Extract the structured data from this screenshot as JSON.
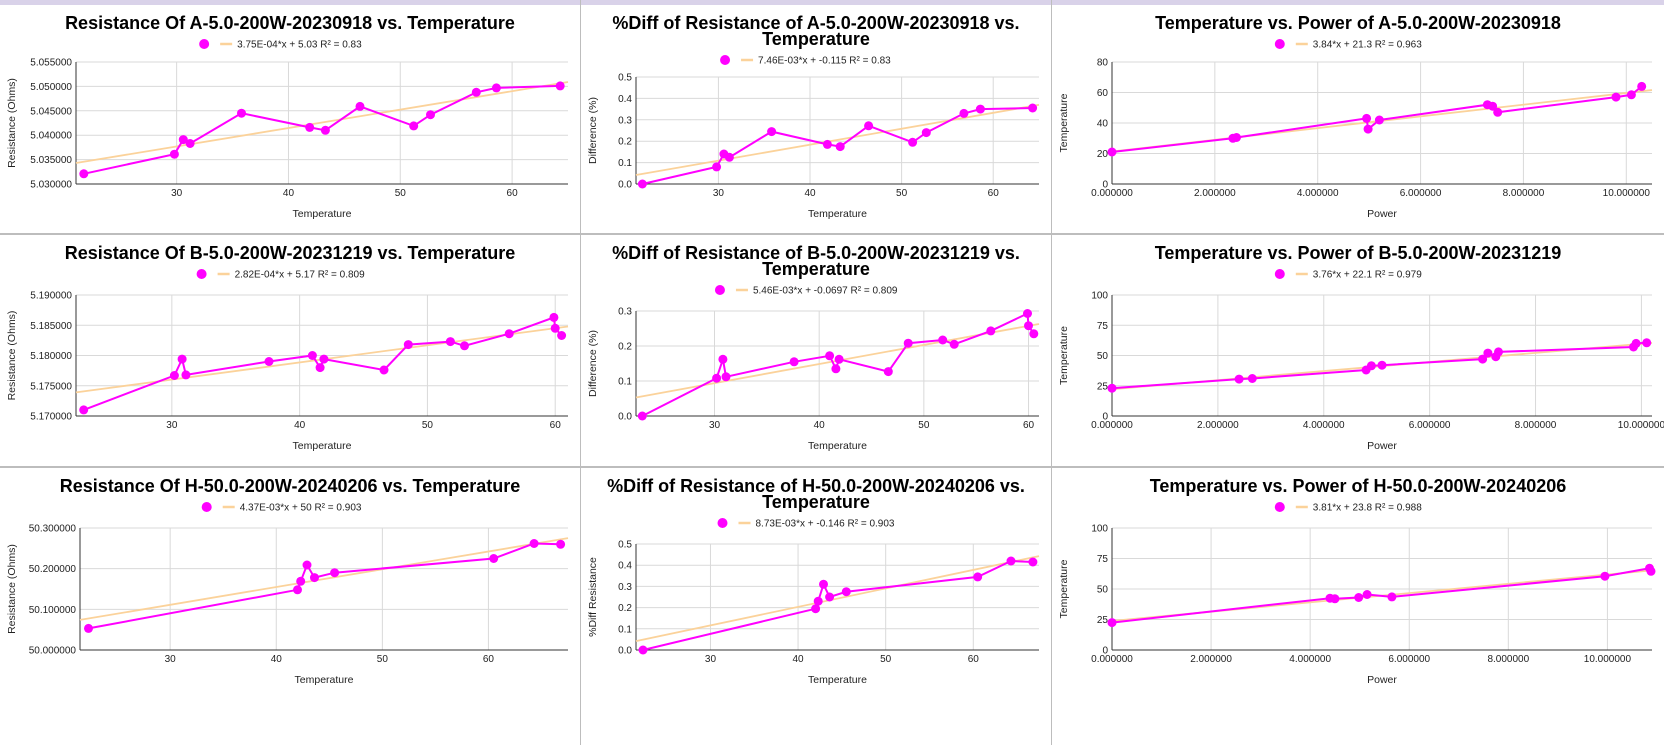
{
  "colors": {
    "series": "#ff00ff",
    "trend": "#fbd29a",
    "grid": "#d9d9d9",
    "axis": "#333333"
  },
  "chart_data": [
    {
      "type": "scatter",
      "title_lines": [
        "Resistance Of A-5.0-200W-20230918 vs. Temperature"
      ],
      "legend": "3.75E-04*x + 5.03 R² = 0.83",
      "xlabel": "Temperature",
      "ylabel": "Resistance (Ohms)",
      "xlim": [
        21,
        65
      ],
      "ylim": [
        5.03,
        5.055
      ],
      "xticks": [
        30,
        40,
        50,
        60
      ],
      "xtick_labels": [
        "30",
        "40",
        "50",
        "60"
      ],
      "yticks": [
        5.03,
        5.035,
        5.04,
        5.045,
        5.05,
        5.055
      ],
      "ytick_labels": [
        "5.030000",
        "5.035000",
        "5.040000",
        "5.045000",
        "5.050000",
        "5.055000"
      ],
      "trend": [
        [
          21,
          5.0343
        ],
        [
          65,
          5.0509
        ]
      ],
      "points": [
        [
          21.7,
          5.0321
        ],
        [
          29.8,
          5.0361
        ],
        [
          30.6,
          5.0391
        ],
        [
          31.2,
          5.0383
        ],
        [
          35.8,
          5.0445
        ],
        [
          41.9,
          5.0416
        ],
        [
          43.3,
          5.041
        ],
        [
          46.4,
          5.0459
        ],
        [
          51.2,
          5.0419
        ],
        [
          52.7,
          5.0442
        ],
        [
          56.8,
          5.0488
        ],
        [
          58.6,
          5.0497
        ],
        [
          64.3,
          5.0501
        ]
      ]
    },
    {
      "type": "scatter",
      "title_lines": [
        "%Diff of Resistance of A-5.0-200W-20230918 vs.",
        "Temperature"
      ],
      "legend": "7.46E-03*x + -0.115 R² = 0.83",
      "xlabel": "Temperature",
      "ylabel": "Difference (%)",
      "xlim": [
        21,
        65
      ],
      "ylim": [
        0,
        0.5
      ],
      "xticks": [
        30,
        40,
        50,
        60
      ],
      "xtick_labels": [
        "30",
        "40",
        "50",
        "60"
      ],
      "yticks": [
        0,
        0.1,
        0.2,
        0.3,
        0.4,
        0.5
      ],
      "ytick_labels": [
        "0.0",
        "0.1",
        "0.2",
        "0.3",
        "0.4",
        "0.5"
      ],
      "trend": [
        [
          21,
          0.042
        ],
        [
          65,
          0.37
        ]
      ],
      "points": [
        [
          21.7,
          0
        ],
        [
          29.8,
          0.08
        ],
        [
          30.6,
          0.14
        ],
        [
          31.2,
          0.125
        ],
        [
          35.8,
          0.245
        ],
        [
          41.9,
          0.185
        ],
        [
          43.3,
          0.175
        ],
        [
          46.4,
          0.272
        ],
        [
          51.2,
          0.195
        ],
        [
          52.7,
          0.24
        ],
        [
          56.8,
          0.33
        ],
        [
          58.6,
          0.35
        ],
        [
          64.3,
          0.355
        ]
      ]
    },
    {
      "type": "scatter",
      "title_lines": [
        "Temperature vs. Power of A-5.0-200W-20230918"
      ],
      "legend": "3.84*x + 21.3 R² = 0.963",
      "xlabel": "Power",
      "ylabel": "Temperature",
      "xlim": [
        0,
        10.5
      ],
      "ylim": [
        0,
        80
      ],
      "xticks": [
        0,
        2,
        4,
        6,
        8,
        10
      ],
      "xtick_labels": [
        "0.000000",
        "2.000000",
        "4.000000",
        "6.000000",
        "8.000000",
        "10.000000"
      ],
      "yticks": [
        0,
        20,
        40,
        60,
        80
      ],
      "ytick_labels": [
        "0",
        "20",
        "40",
        "60",
        "80"
      ],
      "trend": [
        [
          0,
          21.3
        ],
        [
          10.5,
          61.6
        ]
      ],
      "points": [
        [
          0,
          21
        ],
        [
          2.35,
          30
        ],
        [
          2.42,
          30.5
        ],
        [
          4.95,
          43
        ],
        [
          4.98,
          36
        ],
        [
          5.2,
          42
        ],
        [
          7.3,
          52
        ],
        [
          7.4,
          51
        ],
        [
          7.5,
          47
        ],
        [
          9.8,
          57
        ],
        [
          10.1,
          58.5
        ],
        [
          10.3,
          64
        ]
      ]
    },
    {
      "type": "scatter",
      "title_lines": [
        "Resistance Of B-5.0-200W-20231219 vs. Temperature"
      ],
      "legend": "2.82E-04*x + 5.17 R² = 0.809",
      "xlabel": "Temperature",
      "ylabel": "Resistance (Ohms)",
      "xlim": [
        22.5,
        61
      ],
      "ylim": [
        5.17,
        5.19
      ],
      "xticks": [
        30,
        40,
        50,
        60
      ],
      "xtick_labels": [
        "30",
        "40",
        "50",
        "60"
      ],
      "yticks": [
        5.17,
        5.175,
        5.18,
        5.185,
        5.19
      ],
      "ytick_labels": [
        "5.170000",
        "5.175000",
        "5.180000",
        "5.185000",
        "5.190000"
      ],
      "trend": [
        [
          22.5,
          5.1739
        ],
        [
          61,
          5.1848
        ]
      ],
      "points": [
        [
          23.1,
          5.171
        ],
        [
          30.2,
          5.1767
        ],
        [
          30.8,
          5.1794
        ],
        [
          31.1,
          5.1768
        ],
        [
          37.6,
          5.179
        ],
        [
          41.0,
          5.18
        ],
        [
          41.6,
          5.178
        ],
        [
          41.9,
          5.1794
        ],
        [
          46.6,
          5.1776
        ],
        [
          48.5,
          5.1818
        ],
        [
          51.8,
          5.1823
        ],
        [
          52.9,
          5.1816
        ],
        [
          56.4,
          5.1836
        ],
        [
          59.9,
          5.1863
        ],
        [
          60.0,
          5.1845
        ],
        [
          60.5,
          5.1833
        ]
      ]
    },
    {
      "type": "scatter",
      "title_lines": [
        "%Diff of Resistance of B-5.0-200W-20231219 vs.",
        "Temperature"
      ],
      "legend": "5.46E-03*x + -0.0697 R² = 0.809",
      "xlabel": "Temperature",
      "ylabel": "Difference (%)",
      "xlim": [
        22.5,
        61
      ],
      "ylim": [
        0,
        0.3
      ],
      "xticks": [
        30,
        40,
        50,
        60
      ],
      "xtick_labels": [
        "30",
        "40",
        "50",
        "60"
      ],
      "yticks": [
        0,
        0.1,
        0.2,
        0.3
      ],
      "ytick_labels": [
        "0.0",
        "0.1",
        "0.2",
        "0.3"
      ],
      "trend": [
        [
          22.5,
          0.053
        ],
        [
          61,
          0.263
        ]
      ],
      "points": [
        [
          23.1,
          0
        ],
        [
          30.2,
          0.108
        ],
        [
          30.8,
          0.162
        ],
        [
          31.1,
          0.112
        ],
        [
          37.6,
          0.155
        ],
        [
          41.0,
          0.172
        ],
        [
          41.6,
          0.135
        ],
        [
          41.9,
          0.162
        ],
        [
          46.6,
          0.127
        ],
        [
          48.5,
          0.208
        ],
        [
          51.8,
          0.217
        ],
        [
          52.9,
          0.205
        ],
        [
          56.4,
          0.243
        ],
        [
          59.9,
          0.293
        ],
        [
          60.0,
          0.258
        ],
        [
          60.5,
          0.235
        ]
      ]
    },
    {
      "type": "scatter",
      "title_lines": [
        "Temperature vs. Power of B-5.0-200W-20231219"
      ],
      "legend": "3.76*x + 22.1 R² = 0.979",
      "xlabel": "Power",
      "ylabel": "Temperature",
      "xlim": [
        0,
        10.2
      ],
      "ylim": [
        0,
        100
      ],
      "xticks": [
        0,
        2,
        4,
        6,
        8,
        10
      ],
      "xtick_labels": [
        "0.000000",
        "2.000000",
        "4.000000",
        "6.000000",
        "8.000000",
        "10.000000"
      ],
      "yticks": [
        0,
        25,
        50,
        75,
        100
      ],
      "ytick_labels": [
        "0",
        "25",
        "50",
        "75",
        "100"
      ],
      "trend": [
        [
          0,
          22.1
        ],
        [
          10.2,
          60.4
        ]
      ],
      "points": [
        [
          0,
          23
        ],
        [
          2.4,
          30.5
        ],
        [
          2.65,
          31
        ],
        [
          4.8,
          38
        ],
        [
          4.9,
          41.5
        ],
        [
          5.1,
          42
        ],
        [
          7.0,
          47
        ],
        [
          7.1,
          52
        ],
        [
          7.25,
          49
        ],
        [
          7.3,
          53
        ],
        [
          9.85,
          57
        ],
        [
          9.9,
          60
        ],
        [
          10.1,
          60.5
        ]
      ]
    },
    {
      "type": "scatter",
      "title_lines": [
        "Resistance Of H-50.0-200W-20240206 vs. Temperature"
      ],
      "legend": "4.37E-03*x + 50 R² = 0.903",
      "xlabel": "Temperature",
      "ylabel": "Resistance (Ohms)",
      "xlim": [
        21.5,
        67.5
      ],
      "ylim": [
        50,
        50.3
      ],
      "xticks": [
        30,
        40,
        50,
        60
      ],
      "xtick_labels": [
        "30",
        "40",
        "50",
        "60"
      ],
      "yticks": [
        50,
        50.1,
        50.2,
        50.3
      ],
      "ytick_labels": [
        "50.000000",
        "50.100000",
        "50.200000",
        "50.300000"
      ],
      "trend": [
        [
          21.5,
          50.074
        ],
        [
          67.5,
          50.275
        ]
      ],
      "points": [
        [
          22.3,
          50.053
        ],
        [
          42.0,
          50.148
        ],
        [
          42.3,
          50.169
        ],
        [
          42.9,
          50.209
        ],
        [
          43.6,
          50.178
        ],
        [
          45.5,
          50.19
        ],
        [
          60.5,
          50.225
        ],
        [
          64.3,
          50.262
        ],
        [
          66.8,
          50.26
        ]
      ]
    },
    {
      "type": "scatter",
      "title_lines": [
        "%Diff of Resistance of H-50.0-200W-20240206 vs.",
        "Temperature"
      ],
      "legend": "8.73E-03*x + -0.146 R² = 0.903",
      "xlabel": "Temperature",
      "ylabel": "%Diff Resistance",
      "xlim": [
        21.5,
        67.5
      ],
      "ylim": [
        0,
        0.5
      ],
      "xticks": [
        30,
        40,
        50,
        60
      ],
      "xtick_labels": [
        "30",
        "40",
        "50",
        "60"
      ],
      "yticks": [
        0,
        0.1,
        0.2,
        0.3,
        0.4,
        0.5
      ],
      "ytick_labels": [
        "0.0",
        "0.1",
        "0.2",
        "0.3",
        "0.4",
        "0.5"
      ],
      "trend": [
        [
          21.5,
          0.042
        ],
        [
          67.5,
          0.443
        ]
      ],
      "points": [
        [
          22.3,
          0
        ],
        [
          42.0,
          0.195
        ],
        [
          42.3,
          0.23
        ],
        [
          42.9,
          0.31
        ],
        [
          43.6,
          0.25
        ],
        [
          45.5,
          0.275
        ],
        [
          60.5,
          0.345
        ],
        [
          64.3,
          0.42
        ],
        [
          66.8,
          0.415
        ]
      ]
    },
    {
      "type": "scatter",
      "title_lines": [
        "Temperature vs. Power of H-50.0-200W-20240206"
      ],
      "legend": "3.81*x + 23.8 R² = 0.988",
      "xlabel": "Power",
      "ylabel": "Temperature",
      "xlim": [
        0,
        10.9
      ],
      "ylim": [
        0,
        100
      ],
      "xticks": [
        0,
        2,
        4,
        6,
        8,
        10
      ],
      "xtick_labels": [
        "0.000000",
        "2.000000",
        "4.000000",
        "6.000000",
        "8.000000",
        "10.000000"
      ],
      "yticks": [
        0,
        25,
        50,
        75,
        100
      ],
      "ytick_labels": [
        "0",
        "25",
        "50",
        "75",
        "100"
      ],
      "trend": [
        [
          0,
          23.8
        ],
        [
          10.9,
          65.3
        ]
      ],
      "points": [
        [
          0,
          22.5
        ],
        [
          4.4,
          42.5
        ],
        [
          4.5,
          42
        ],
        [
          4.98,
          43
        ],
        [
          5.15,
          45.5
        ],
        [
          5.65,
          43.5
        ],
        [
          9.95,
          60.5
        ],
        [
          10.85,
          67
        ],
        [
          10.88,
          64.5
        ]
      ]
    }
  ]
}
